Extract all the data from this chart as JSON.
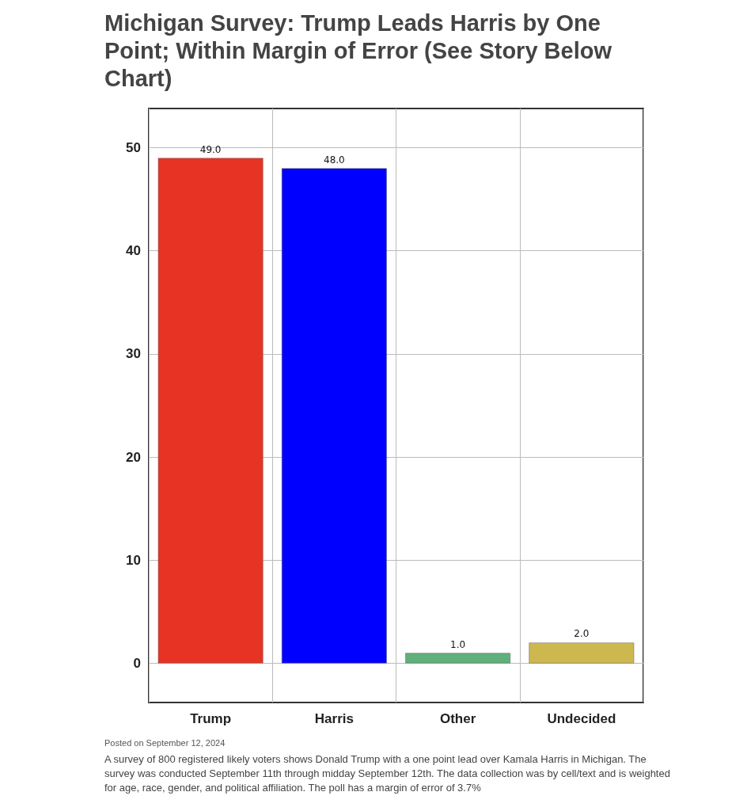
{
  "chart_data": {
    "type": "bar",
    "title": "Michigan Survey: Trump Leads Harris by One Point; Within Margin of Error (See Story Below Chart)",
    "categories": [
      "Trump",
      "Harris",
      "Other",
      "Undecided"
    ],
    "values": [
      49,
      48,
      1,
      2
    ],
    "value_labels": [
      "49.0",
      "48.0",
      "1.0",
      "2.0"
    ],
    "colors": [
      "#e63323",
      "#0000ff",
      "#5fb07a",
      "#cdb850"
    ],
    "ylim": [
      -3.8,
      53.8
    ],
    "yticks": [
      0,
      10,
      20,
      30,
      40,
      50
    ],
    "grid": true,
    "annotations": [
      "Posted on September 12, 2024",
      "A survey of 800 registered likely voters shows Donald Trump with a one point lead over Kamala Harris in Michigan. The survey was conducted September 11th through midday September 12th. The data collection was by cell/text and is weighted for age, race, gender, and political affiliation. The poll has a margin of error of 3.7%"
    ]
  }
}
